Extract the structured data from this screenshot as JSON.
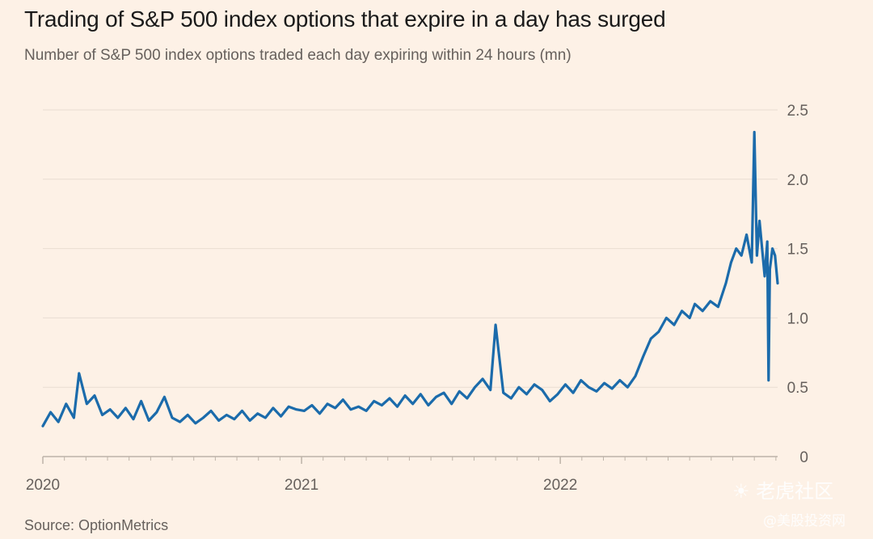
{
  "title": "Trading of S&P 500 index options that expire in a day has surged",
  "subtitle": "Number of S&P 500 index options traded each day expiring within 24 hours (mn)",
  "source": "Source: OptionMetrics",
  "watermark": {
    "brand": "☀ 老虎社区",
    "handle": "@美股投资网"
  },
  "colors": {
    "line": "#1b6bab",
    "grid": "#e9ddd2",
    "axis": "#66605c",
    "background": "#fdf1e6"
  },
  "chart_data": {
    "type": "line",
    "title": "Trading of S&P 500 index options that expire in a day has surged",
    "subtitle": "Number of S&P 500 index options traded each day expiring within 24 hours (mn)",
    "xlabel": "",
    "ylabel": "",
    "ylim": [
      0,
      2.5
    ],
    "yticks": [
      0,
      0.5,
      1.0,
      1.5,
      2.0,
      2.5
    ],
    "ytick_labels": [
      "0",
      "0.5",
      "1.0",
      "1.5",
      "2.0",
      "2.5"
    ],
    "y_axis_position": "right",
    "grid": "horizontal",
    "xlim": [
      2020.0,
      2022.84
    ],
    "xticks": [
      2020,
      2021,
      2022
    ],
    "xtick_labels": [
      "2020",
      "2021",
      "2022"
    ],
    "minor_ticks_per_year": 12,
    "series": [
      {
        "name": "",
        "points": [
          [
            2020.0,
            0.22
          ],
          [
            2020.03,
            0.32
          ],
          [
            2020.06,
            0.25
          ],
          [
            2020.09,
            0.38
          ],
          [
            2020.12,
            0.28
          ],
          [
            2020.14,
            0.6
          ],
          [
            2020.17,
            0.38
          ],
          [
            2020.2,
            0.44
          ],
          [
            2020.23,
            0.3
          ],
          [
            2020.26,
            0.34
          ],
          [
            2020.29,
            0.28
          ],
          [
            2020.32,
            0.35
          ],
          [
            2020.35,
            0.27
          ],
          [
            2020.38,
            0.4
          ],
          [
            2020.41,
            0.26
          ],
          [
            2020.44,
            0.32
          ],
          [
            2020.47,
            0.43
          ],
          [
            2020.5,
            0.28
          ],
          [
            2020.53,
            0.25
          ],
          [
            2020.56,
            0.3
          ],
          [
            2020.59,
            0.24
          ],
          [
            2020.62,
            0.28
          ],
          [
            2020.65,
            0.33
          ],
          [
            2020.68,
            0.26
          ],
          [
            2020.71,
            0.3
          ],
          [
            2020.74,
            0.27
          ],
          [
            2020.77,
            0.33
          ],
          [
            2020.8,
            0.26
          ],
          [
            2020.83,
            0.31
          ],
          [
            2020.86,
            0.28
          ],
          [
            2020.89,
            0.35
          ],
          [
            2020.92,
            0.29
          ],
          [
            2020.95,
            0.36
          ],
          [
            2020.98,
            0.34
          ],
          [
            2021.01,
            0.33
          ],
          [
            2021.04,
            0.37
          ],
          [
            2021.07,
            0.31
          ],
          [
            2021.1,
            0.38
          ],
          [
            2021.13,
            0.35
          ],
          [
            2021.16,
            0.41
          ],
          [
            2021.19,
            0.34
          ],
          [
            2021.22,
            0.36
          ],
          [
            2021.25,
            0.33
          ],
          [
            2021.28,
            0.4
          ],
          [
            2021.31,
            0.37
          ],
          [
            2021.34,
            0.42
          ],
          [
            2021.37,
            0.36
          ],
          [
            2021.4,
            0.44
          ],
          [
            2021.43,
            0.38
          ],
          [
            2021.46,
            0.45
          ],
          [
            2021.49,
            0.37
          ],
          [
            2021.52,
            0.43
          ],
          [
            2021.55,
            0.46
          ],
          [
            2021.58,
            0.38
          ],
          [
            2021.61,
            0.47
          ],
          [
            2021.64,
            0.42
          ],
          [
            2021.67,
            0.5
          ],
          [
            2021.7,
            0.56
          ],
          [
            2021.73,
            0.48
          ],
          [
            2021.75,
            0.95
          ],
          [
            2021.78,
            0.46
          ],
          [
            2021.81,
            0.42
          ],
          [
            2021.84,
            0.5
          ],
          [
            2021.87,
            0.45
          ],
          [
            2021.9,
            0.52
          ],
          [
            2021.93,
            0.48
          ],
          [
            2021.96,
            0.4
          ],
          [
            2021.99,
            0.45
          ],
          [
            2022.02,
            0.52
          ],
          [
            2022.05,
            0.46
          ],
          [
            2022.08,
            0.55
          ],
          [
            2022.11,
            0.5
          ],
          [
            2022.14,
            0.47
          ],
          [
            2022.17,
            0.53
          ],
          [
            2022.2,
            0.49
          ],
          [
            2022.23,
            0.55
          ],
          [
            2022.26,
            0.5
          ],
          [
            2022.29,
            0.58
          ],
          [
            2022.32,
            0.72
          ],
          [
            2022.35,
            0.85
          ],
          [
            2022.38,
            0.9
          ],
          [
            2022.41,
            1.0
          ],
          [
            2022.44,
            0.95
          ],
          [
            2022.47,
            1.05
          ],
          [
            2022.5,
            1.0
          ],
          [
            2022.52,
            1.1
          ],
          [
            2022.55,
            1.05
          ],
          [
            2022.58,
            1.12
          ],
          [
            2022.61,
            1.08
          ],
          [
            2022.64,
            1.25
          ],
          [
            2022.66,
            1.4
          ],
          [
            2022.68,
            1.5
          ],
          [
            2022.7,
            1.45
          ],
          [
            2022.72,
            1.6
          ],
          [
            2022.74,
            1.4
          ],
          [
            2022.75,
            2.34
          ],
          [
            2022.76,
            1.45
          ],
          [
            2022.77,
            1.7
          ],
          [
            2022.78,
            1.5
          ],
          [
            2022.79,
            1.3
          ],
          [
            2022.8,
            1.55
          ],
          [
            2022.805,
            0.55
          ],
          [
            2022.81,
            1.35
          ],
          [
            2022.82,
            1.5
          ],
          [
            2022.83,
            1.45
          ],
          [
            2022.84,
            1.25
          ]
        ]
      }
    ]
  }
}
